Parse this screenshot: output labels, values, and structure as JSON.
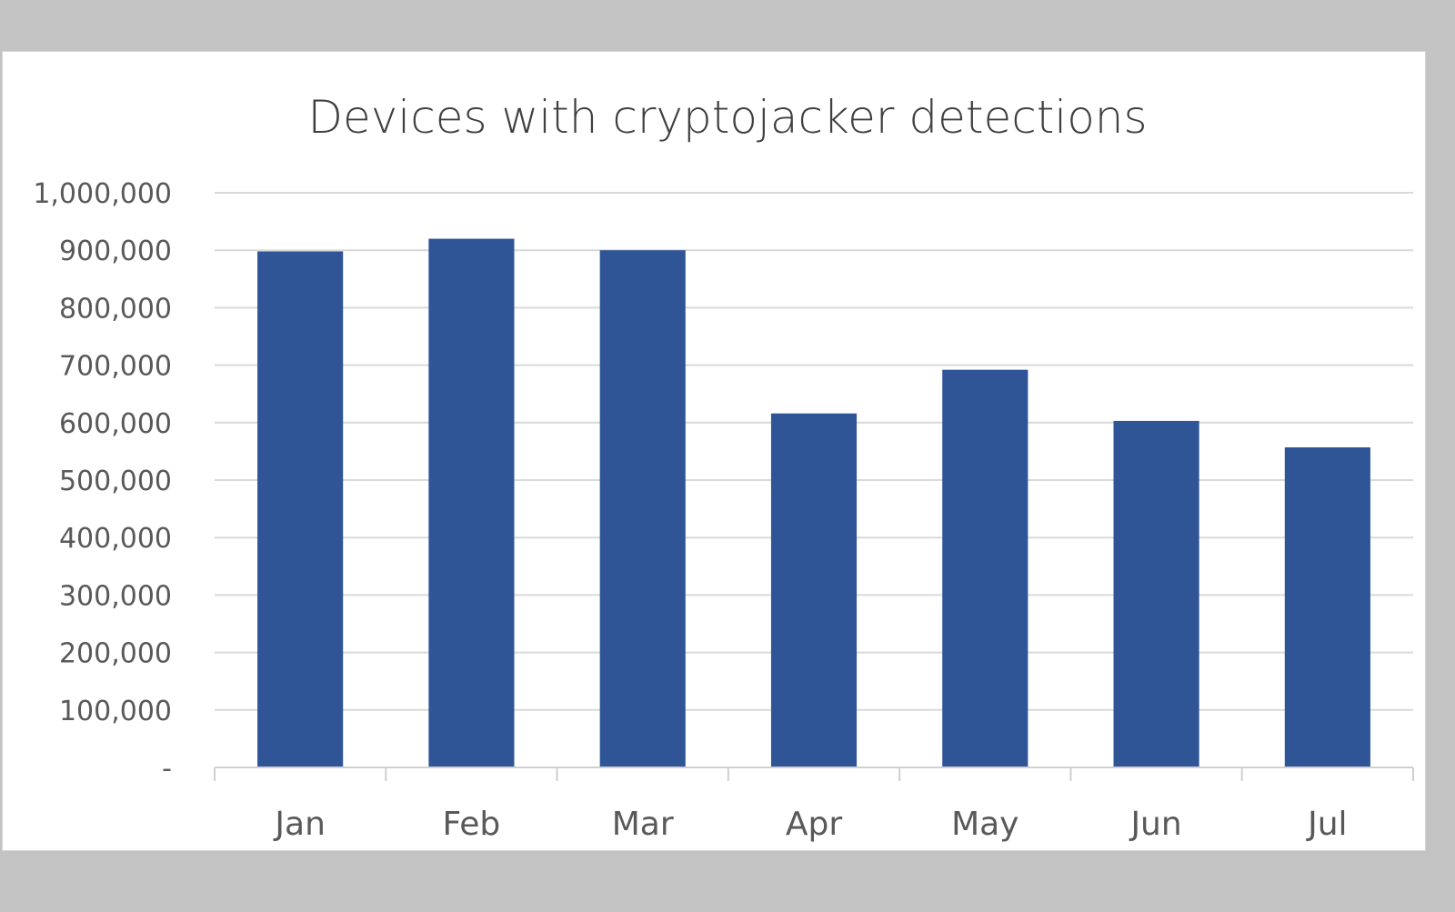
{
  "chart_data": {
    "type": "bar",
    "title": "Devices with cryptojacker detections",
    "xlabel": "",
    "ylabel": "",
    "categories": [
      "Jan",
      "Feb",
      "Mar",
      "Apr",
      "May",
      "Jun",
      "Jul"
    ],
    "values": [
      898000,
      920000,
      900000,
      616000,
      692000,
      603000,
      557000
    ],
    "ylim": [
      0,
      1000000
    ],
    "yticks": [
      0,
      100000,
      200000,
      300000,
      400000,
      500000,
      600000,
      700000,
      800000,
      900000,
      1000000
    ],
    "ytick_labels": [
      "-",
      "100,000",
      "200,000",
      "300,000",
      "400,000",
      "500,000",
      "600,000",
      "700,000",
      "800,000",
      "900,000",
      "1,000,000"
    ],
    "grid": true,
    "legend": "none",
    "bar_color": "#2f5597",
    "grid_color": "#d9d9d9",
    "background_color": "#ffffff",
    "frame_color": "#c3c3c3"
  }
}
